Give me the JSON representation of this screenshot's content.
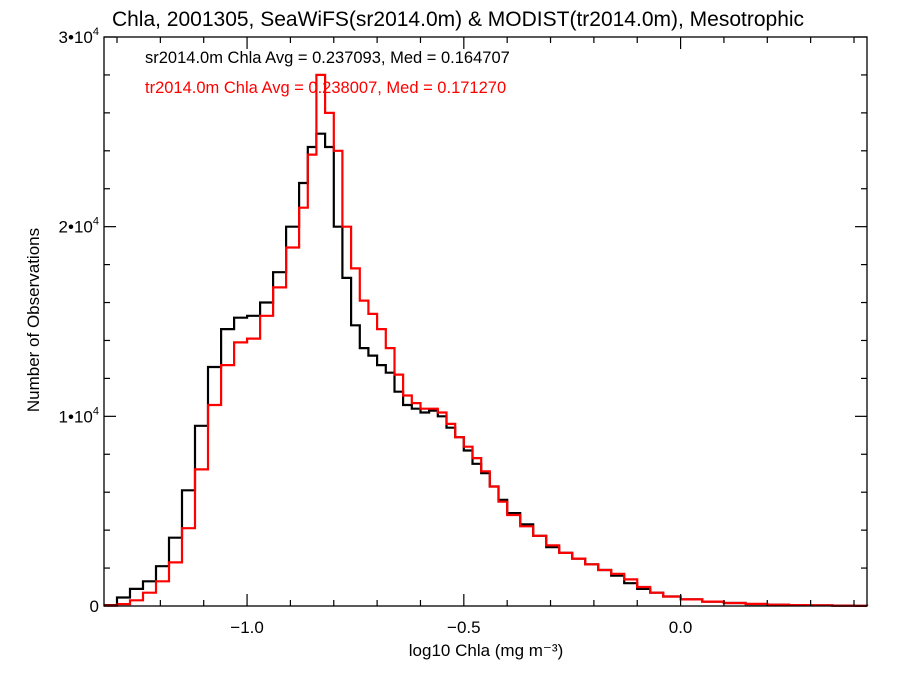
{
  "chart_data": {
    "type": "line",
    "title": "Chla, 2001305, SeaWiFS(sr2014.0m) & MODIST(tr2014.0m), Mesotrophic",
    "xlabel": "log10 Chla (mg m⁻³)",
    "ylabel": "Number of Observations",
    "xlim": [
      -1.33,
      0.43
    ],
    "ylim": [
      0,
      30000
    ],
    "x_ticks": [
      {
        "value": -1.0,
        "label": "−1.0"
      },
      {
        "value": -0.5,
        "label": "−0.5"
      },
      {
        "value": 0.0,
        "label": "0.0"
      }
    ],
    "y_ticks": [
      {
        "value": 0,
        "base": "0",
        "exp": ""
      },
      {
        "value": 10000,
        "base": "1•10",
        "exp": "4"
      },
      {
        "value": 20000,
        "base": "2•10",
        "exp": "4"
      },
      {
        "value": 30000,
        "base": "3•10",
        "exp": "4"
      }
    ],
    "annotations": [
      "sr2014.0m Chla Avg = 0.237093, Med = 0.164707",
      "tr2014.0m Chla Avg = 0.238007, Med = 0.171270"
    ],
    "grid": false,
    "step": true,
    "series": [
      {
        "color": "#000000",
        "x": [
          -1.33,
          -1.3,
          -1.27,
          -1.24,
          -1.21,
          -1.18,
          -1.15,
          -1.12,
          -1.09,
          -1.06,
          -1.03,
          -1.0,
          -0.97,
          -0.94,
          -0.91,
          -0.88,
          -0.86,
          -0.84,
          -0.82,
          -0.8,
          -0.78,
          -0.76,
          -0.74,
          -0.72,
          -0.7,
          -0.68,
          -0.66,
          -0.64,
          -0.62,
          -0.6,
          -0.58,
          -0.56,
          -0.54,
          -0.52,
          -0.5,
          -0.48,
          -0.46,
          -0.44,
          -0.42,
          -0.4,
          -0.37,
          -0.34,
          -0.31,
          -0.28,
          -0.25,
          -0.22,
          -0.19,
          -0.16,
          -0.13,
          -0.1,
          -0.07,
          -0.04,
          0.0,
          0.05,
          0.1,
          0.15,
          0.2,
          0.25,
          0.3,
          0.35,
          0.4,
          0.43
        ],
        "y": [
          50,
          450,
          900,
          1300,
          2100,
          3600,
          6100,
          9500,
          12600,
          14600,
          15200,
          15300,
          16000,
          17600,
          20000,
          22300,
          24200,
          24900,
          24200,
          20000,
          17300,
          14800,
          13600,
          13200,
          12700,
          12300,
          11300,
          10600,
          10400,
          10200,
          10300,
          10000,
          9400,
          8900,
          8200,
          7500,
          7000,
          6300,
          5600,
          4900,
          4300,
          3700,
          3100,
          2800,
          2500,
          2200,
          1900,
          1600,
          1200,
          900,
          700,
          500,
          350,
          230,
          160,
          100,
          70,
          50,
          35,
          20,
          10,
          5
        ]
      },
      {
        "color": "#ff0000",
        "x": [
          -1.33,
          -1.3,
          -1.27,
          -1.24,
          -1.21,
          -1.18,
          -1.15,
          -1.12,
          -1.09,
          -1.06,
          -1.03,
          -1.0,
          -0.97,
          -0.94,
          -0.91,
          -0.88,
          -0.86,
          -0.84,
          -0.82,
          -0.8,
          -0.78,
          -0.76,
          -0.74,
          -0.72,
          -0.7,
          -0.68,
          -0.66,
          -0.64,
          -0.62,
          -0.6,
          -0.58,
          -0.56,
          -0.54,
          -0.52,
          -0.5,
          -0.48,
          -0.46,
          -0.44,
          -0.42,
          -0.4,
          -0.37,
          -0.34,
          -0.31,
          -0.28,
          -0.25,
          -0.22,
          -0.19,
          -0.16,
          -0.13,
          -0.1,
          -0.07,
          -0.04,
          0.0,
          0.05,
          0.1,
          0.15,
          0.2,
          0.25,
          0.3,
          0.35,
          0.4,
          0.43
        ],
        "y": [
          20,
          100,
          300,
          700,
          1300,
          2300,
          4100,
          7200,
          10600,
          12700,
          13900,
          14100,
          15300,
          16800,
          18900,
          21000,
          23800,
          28000,
          26000,
          24000,
          20000,
          17800,
          16100,
          15400,
          14600,
          13600,
          12200,
          11100,
          10700,
          10400,
          10400,
          10200,
          9600,
          8900,
          8400,
          7800,
          7100,
          6300,
          5500,
          4800,
          4200,
          3700,
          3200,
          2800,
          2500,
          2200,
          1900,
          1700,
          1400,
          1000,
          700,
          500,
          350,
          230,
          160,
          110,
          70,
          45,
          30,
          15,
          5,
          0
        ]
      }
    ]
  }
}
